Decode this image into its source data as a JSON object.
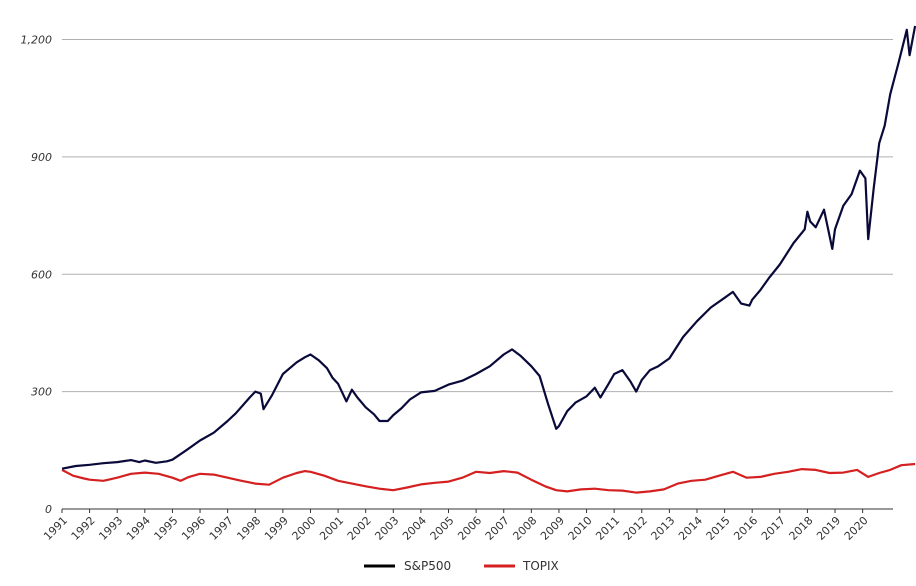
{
  "chart_data": {
    "type": "line",
    "x_label_years": [
      "1991",
      "1992",
      "1993",
      "1994",
      "1995",
      "1996",
      "1997",
      "1998",
      "1999",
      "2000",
      "2001",
      "2002",
      "2003",
      "2004",
      "2005",
      "2006",
      "2007",
      "2008",
      "2009",
      "2010",
      "2011",
      "2012",
      "2013",
      "2014",
      "2015",
      "2016",
      "2017",
      "2018",
      "2019",
      "2020"
    ],
    "y_ticks": [
      0,
      300,
      600,
      900,
      1200
    ],
    "y_tick_labels": [
      "0",
      "300",
      "600",
      "900",
      "1,200"
    ],
    "ylim": [
      0,
      1250
    ],
    "xlim": [
      1991.0,
      2021.1
    ],
    "grid": "horizontal",
    "legend_position": "bottom-center",
    "series": [
      {
        "name": "S&P500",
        "color": "#0a0a3a",
        "points": [
          [
            1991.0,
            103
          ],
          [
            1991.5,
            110
          ],
          [
            1992.0,
            113
          ],
          [
            1992.5,
            117
          ],
          [
            1993.0,
            120
          ],
          [
            1993.5,
            125
          ],
          [
            1993.8,
            120
          ],
          [
            1994.0,
            124
          ],
          [
            1994.4,
            118
          ],
          [
            1994.8,
            122
          ],
          [
            1995.0,
            126
          ],
          [
            1995.5,
            150
          ],
          [
            1996.0,
            175
          ],
          [
            1996.5,
            195
          ],
          [
            1997.0,
            225
          ],
          [
            1997.3,
            245
          ],
          [
            1997.8,
            285
          ],
          [
            1998.0,
            300
          ],
          [
            1998.2,
            295
          ],
          [
            1998.3,
            255
          ],
          [
            1998.6,
            290
          ],
          [
            1999.0,
            345
          ],
          [
            1999.5,
            375
          ],
          [
            1999.8,
            388
          ],
          [
            2000.0,
            395
          ],
          [
            2000.3,
            380
          ],
          [
            2000.6,
            360
          ],
          [
            2000.8,
            335
          ],
          [
            2001.0,
            320
          ],
          [
            2001.3,
            275
          ],
          [
            2001.5,
            305
          ],
          [
            2001.7,
            285
          ],
          [
            2002.0,
            260
          ],
          [
            2002.3,
            242
          ],
          [
            2002.5,
            225
          ],
          [
            2002.8,
            225
          ],
          [
            2003.0,
            240
          ],
          [
            2003.3,
            258
          ],
          [
            2003.6,
            280
          ],
          [
            2004.0,
            298
          ],
          [
            2004.5,
            302
          ],
          [
            2005.0,
            318
          ],
          [
            2005.5,
            328
          ],
          [
            2006.0,
            345
          ],
          [
            2006.5,
            365
          ],
          [
            2007.0,
            395
          ],
          [
            2007.3,
            408
          ],
          [
            2007.6,
            392
          ],
          [
            2008.0,
            365
          ],
          [
            2008.3,
            340
          ],
          [
            2008.6,
            270
          ],
          [
            2008.9,
            205
          ],
          [
            2009.0,
            212
          ],
          [
            2009.3,
            250
          ],
          [
            2009.6,
            272
          ],
          [
            2010.0,
            288
          ],
          [
            2010.3,
            310
          ],
          [
            2010.5,
            285
          ],
          [
            2010.8,
            320
          ],
          [
            2011.0,
            345
          ],
          [
            2011.3,
            355
          ],
          [
            2011.6,
            325
          ],
          [
            2011.8,
            300
          ],
          [
            2012.0,
            330
          ],
          [
            2012.3,
            355
          ],
          [
            2012.6,
            365
          ],
          [
            2013.0,
            385
          ],
          [
            2013.5,
            440
          ],
          [
            2014.0,
            480
          ],
          [
            2014.5,
            515
          ],
          [
            2015.0,
            540
          ],
          [
            2015.3,
            555
          ],
          [
            2015.6,
            525
          ],
          [
            2015.9,
            520
          ],
          [
            2016.0,
            535
          ],
          [
            2016.3,
            560
          ],
          [
            2016.6,
            590
          ],
          [
            2017.0,
            625
          ],
          [
            2017.5,
            680
          ],
          [
            2017.9,
            715
          ],
          [
            2018.0,
            760
          ],
          [
            2018.1,
            735
          ],
          [
            2018.3,
            720
          ],
          [
            2018.6,
            765
          ],
          [
            2018.9,
            665
          ],
          [
            2019.0,
            715
          ],
          [
            2019.3,
            775
          ],
          [
            2019.6,
            805
          ],
          [
            2019.9,
            865
          ],
          [
            2020.1,
            845
          ],
          [
            2020.2,
            690
          ],
          [
            2020.4,
            820
          ],
          [
            2020.6,
            935
          ],
          [
            2020.8,
            980
          ],
          [
            2021.0,
            1060
          ],
          [
            2021.3,
            1140
          ],
          [
            2021.6,
            1225
          ],
          [
            2021.7,
            1160
          ],
          [
            2021.9,
            1235
          ]
        ]
      },
      {
        "name": "TOPIX",
        "color": "#d42020",
        "points": [
          [
            1991.0,
            100
          ],
          [
            1991.4,
            85
          ],
          [
            1991.8,
            78
          ],
          [
            1992.0,
            75
          ],
          [
            1992.5,
            72
          ],
          [
            1993.0,
            80
          ],
          [
            1993.5,
            90
          ],
          [
            1994.0,
            93
          ],
          [
            1994.5,
            90
          ],
          [
            1995.0,
            80
          ],
          [
            1995.3,
            72
          ],
          [
            1995.6,
            82
          ],
          [
            1996.0,
            90
          ],
          [
            1996.5,
            88
          ],
          [
            1997.0,
            80
          ],
          [
            1997.5,
            72
          ],
          [
            1998.0,
            65
          ],
          [
            1998.5,
            62
          ],
          [
            1999.0,
            80
          ],
          [
            1999.5,
            92
          ],
          [
            1999.8,
            97
          ],
          [
            2000.0,
            95
          ],
          [
            2000.5,
            85
          ],
          [
            2001.0,
            72
          ],
          [
            2001.5,
            65
          ],
          [
            2002.0,
            58
          ],
          [
            2002.5,
            52
          ],
          [
            2003.0,
            48
          ],
          [
            2003.5,
            55
          ],
          [
            2004.0,
            63
          ],
          [
            2004.5,
            67
          ],
          [
            2005.0,
            70
          ],
          [
            2005.5,
            80
          ],
          [
            2006.0,
            95
          ],
          [
            2006.5,
            92
          ],
          [
            2007.0,
            97
          ],
          [
            2007.5,
            93
          ],
          [
            2008.0,
            75
          ],
          [
            2008.5,
            58
          ],
          [
            2008.9,
            48
          ],
          [
            2009.3,
            45
          ],
          [
            2009.8,
            50
          ],
          [
            2010.3,
            52
          ],
          [
            2010.8,
            48
          ],
          [
            2011.3,
            47
          ],
          [
            2011.8,
            42
          ],
          [
            2012.3,
            45
          ],
          [
            2012.8,
            50
          ],
          [
            2013.3,
            65
          ],
          [
            2013.8,
            72
          ],
          [
            2014.3,
            75
          ],
          [
            2014.8,
            85
          ],
          [
            2015.3,
            95
          ],
          [
            2015.8,
            80
          ],
          [
            2016.3,
            82
          ],
          [
            2016.8,
            90
          ],
          [
            2017.3,
            95
          ],
          [
            2017.8,
            102
          ],
          [
            2018.3,
            100
          ],
          [
            2018.8,
            92
          ],
          [
            2019.3,
            93
          ],
          [
            2019.8,
            100
          ],
          [
            2020.2,
            82
          ],
          [
            2020.6,
            92
          ],
          [
            2021.0,
            100
          ],
          [
            2021.4,
            112
          ],
          [
            2021.9,
            115
          ]
        ]
      }
    ]
  }
}
